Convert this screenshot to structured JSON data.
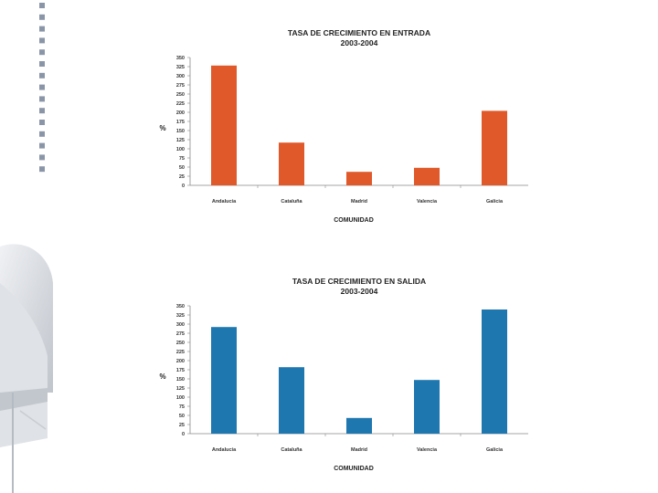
{
  "chart_data": [
    {
      "type": "bar",
      "title": "TASA DE CRECIMIENTO EN ENTRADA",
      "subtitle": "2003-2004",
      "xlabel": "COMUNIDAD",
      "ylabel": "%",
      "categories": [
        "Andalucía",
        "Cataluña",
        "Madrid",
        "Valencia",
        "Galicia"
      ],
      "values": [
        328,
        117,
        37,
        48,
        204
      ],
      "ylim": [
        0,
        350
      ],
      "yticks": [
        "0",
        "25",
        "50",
        "75",
        "100",
        "125",
        "150",
        "175",
        "200",
        "225",
        "250",
        "275",
        "300",
        "325",
        "350"
      ],
      "bar_color": "#e0592a",
      "grid": false,
      "legend": "none"
    },
    {
      "type": "bar",
      "title": "TASA DE CRECIMIENTO EN SALIDA",
      "subtitle": "2003-2004",
      "xlabel": "COMUNIDAD",
      "ylabel": "%",
      "categories": [
        "Andalucía",
        "Cataluña",
        "Madrid",
        "Valencia",
        "Galicia"
      ],
      "values": [
        292,
        182,
        43,
        147,
        340
      ],
      "ylim": [
        0,
        350
      ],
      "yticks": [
        "0",
        "25",
        "50",
        "75",
        "100",
        "125",
        "150",
        "175",
        "200",
        "225",
        "250",
        "275",
        "300",
        "325",
        "350"
      ],
      "bar_color": "#1f77b0",
      "grid": false,
      "legend": "none"
    }
  ],
  "theme": {
    "deco_square_color": "#8a96a8",
    "deco_shape_color": "#c8ccd2"
  }
}
